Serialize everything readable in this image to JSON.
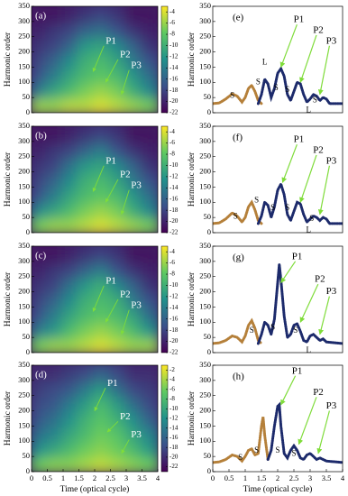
{
  "chart_data": [
    {
      "type": "heatmap",
      "label": "(a)",
      "ylabel": "Harmonic order",
      "xlim": [
        0,
        4
      ],
      "ylim": [
        0,
        350
      ],
      "yticks": [
        0,
        50,
        100,
        150,
        200,
        250,
        300,
        350
      ],
      "x": [
        0.25,
        0.75,
        1.25,
        1.75,
        2.25,
        2.75,
        3.25,
        3.75
      ],
      "y": [
        25,
        75,
        125,
        175,
        225,
        275,
        325
      ],
      "z": [
        [
          -6,
          -6,
          -5,
          -5,
          -4,
          -5,
          -6,
          -7
        ],
        [
          -14,
          -11,
          -9,
          -7,
          -6,
          -7,
          -10,
          -13
        ],
        [
          -17,
          -14,
          -11,
          -9,
          -8,
          -9,
          -12,
          -15
        ],
        [
          -18,
          -16,
          -13,
          -10,
          -9,
          -11,
          -14,
          -17
        ],
        [
          -19,
          -18,
          -16,
          -12,
          -11,
          -13,
          -16,
          -19
        ],
        [
          -20,
          -19,
          -18,
          -16,
          -15,
          -17,
          -19,
          -20
        ],
        [
          -21,
          -21,
          -20,
          -19,
          -18,
          -19,
          -21,
          -21
        ]
      ],
      "zlim": [
        -22,
        -3
      ],
      "zticks": [
        -4,
        -6,
        -8,
        -10,
        -12,
        -14,
        -16,
        -18,
        -20,
        -22
      ],
      "annotations": [
        "P1",
        "P2",
        "P3"
      ]
    },
    {
      "type": "heatmap",
      "label": "(b)",
      "ylabel": "Harmonic order",
      "xlim": [
        0,
        4
      ],
      "ylim": [
        0,
        350
      ],
      "yticks": [
        0,
        50,
        100,
        150,
        200,
        250,
        300,
        350
      ],
      "x": [
        0.25,
        0.75,
        1.25,
        1.75,
        2.25,
        2.75,
        3.25,
        3.75
      ],
      "y": [
        25,
        75,
        125,
        175,
        225,
        275,
        325
      ],
      "z": [
        [
          -7,
          -6,
          -6,
          -5,
          -4,
          -5,
          -6,
          -7
        ],
        [
          -13,
          -11,
          -9,
          -7,
          -6,
          -7,
          -10,
          -13
        ],
        [
          -17,
          -14,
          -11,
          -9,
          -8,
          -9,
          -12,
          -15
        ],
        [
          -18,
          -16,
          -13,
          -10,
          -9,
          -11,
          -14,
          -17
        ],
        [
          -19,
          -18,
          -15,
          -12,
          -11,
          -13,
          -16,
          -19
        ],
        [
          -20,
          -19,
          -18,
          -16,
          -14,
          -17,
          -19,
          -20
        ],
        [
          -21,
          -21,
          -20,
          -19,
          -18,
          -19,
          -21,
          -21
        ]
      ],
      "zlim": [
        -22,
        -3
      ],
      "zticks": [
        -4,
        -6,
        -8,
        -10,
        -12,
        -14,
        -16,
        -18,
        -20,
        -22
      ],
      "annotations": [
        "P1",
        "P2",
        "P3"
      ]
    },
    {
      "type": "heatmap",
      "label": "(c)",
      "ylabel": "Harmonic order",
      "xlim": [
        0,
        4
      ],
      "ylim": [
        0,
        350
      ],
      "yticks": [
        0,
        50,
        100,
        150,
        200,
        250,
        300,
        350
      ],
      "x": [
        0.25,
        0.75,
        1.25,
        1.75,
        2.25,
        2.75,
        3.25,
        3.75
      ],
      "y": [
        25,
        75,
        125,
        175,
        225,
        275,
        325
      ],
      "z": [
        [
          -7,
          -6,
          -6,
          -5,
          -4,
          -5,
          -6,
          -6
        ],
        [
          -14,
          -12,
          -9,
          -7,
          -6,
          -7,
          -9,
          -12
        ],
        [
          -17,
          -14,
          -11,
          -9,
          -8,
          -9,
          -11,
          -15
        ],
        [
          -18,
          -16,
          -13,
          -10,
          -9,
          -10,
          -14,
          -17
        ],
        [
          -19,
          -18,
          -15,
          -12,
          -10,
          -13,
          -16,
          -19
        ],
        [
          -20,
          -19,
          -18,
          -16,
          -14,
          -17,
          -19,
          -20
        ],
        [
          -21,
          -21,
          -20,
          -19,
          -18,
          -19,
          -21,
          -21
        ]
      ],
      "zlim": [
        -22,
        -3
      ],
      "zticks": [
        -4,
        -6,
        -8,
        -10,
        -12,
        -14,
        -16,
        -18,
        -20,
        -22
      ],
      "annotations": [
        "P1",
        "P2",
        "P3"
      ]
    },
    {
      "type": "heatmap",
      "label": "(d)",
      "ylabel": "Harmonic order",
      "xlabel": "Time (optical cycle)",
      "xlim": [
        0,
        4
      ],
      "ylim": [
        0,
        350
      ],
      "xticks": [
        0,
        0.5,
        1,
        1.5,
        2,
        2.5,
        3,
        3.5,
        4
      ],
      "yticks": [
        0,
        50,
        100,
        150,
        200,
        250,
        300,
        350
      ],
      "x": [
        0.25,
        0.75,
        1.25,
        1.75,
        2.25,
        2.75,
        3.25,
        3.75
      ],
      "y": [
        25,
        75,
        125,
        175,
        225,
        275,
        325
      ],
      "z": [
        [
          -6,
          -5,
          -5,
          -4,
          -3,
          -4,
          -5,
          -6
        ],
        [
          -12,
          -10,
          -8,
          -6,
          -5,
          -6,
          -8,
          -11
        ],
        [
          -15,
          -13,
          -10,
          -8,
          -6,
          -7,
          -10,
          -13
        ],
        [
          -17,
          -15,
          -12,
          -9,
          -7,
          -9,
          -12,
          -16
        ],
        [
          -18,
          -17,
          -14,
          -11,
          -8,
          -11,
          -15,
          -18
        ],
        [
          -19,
          -18,
          -17,
          -14,
          -11,
          -15,
          -18,
          -19
        ],
        [
          -20,
          -20,
          -19,
          -18,
          -16,
          -18,
          -20,
          -20
        ]
      ],
      "zlim": [
        -23,
        -1
      ],
      "zticks": [
        -2,
        -4,
        -6,
        -8,
        -10,
        -12,
        -14,
        -16,
        -18,
        -20,
        -22
      ],
      "annotations": [
        "P1",
        "P2",
        "P3"
      ]
    },
    {
      "type": "line",
      "label": "(e)",
      "ylabel": "Harmonic order",
      "xlim": [
        0,
        4
      ],
      "ylim": [
        0,
        350
      ],
      "yticks": [
        0,
        50,
        100,
        150,
        200,
        250,
        300,
        350
      ],
      "series": [
        {
          "color": "#b5803a",
          "x": [
            0,
            0.2,
            0.4,
            0.6,
            0.75,
            0.9,
            1.0,
            1.1,
            1.2,
            1.3,
            1.4,
            1.5
          ],
          "values": [
            30,
            32,
            45,
            62,
            55,
            35,
            50,
            80,
            90,
            70,
            40,
            30
          ]
        },
        {
          "color": "#1c2a6b",
          "x": [
            1.4,
            1.5,
            1.6,
            1.7,
            1.8,
            1.9,
            2.0,
            2.1,
            2.2,
            2.3,
            2.4,
            2.5,
            2.6,
            2.7,
            2.8,
            2.9,
            3.0,
            3.1,
            3.2,
            3.3,
            3.4,
            3.5,
            3.6,
            4.0
          ],
          "values": [
            30,
            60,
            110,
            95,
            50,
            80,
            130,
            145,
            120,
            60,
            40,
            70,
            100,
            95,
            60,
            35,
            45,
            60,
            55,
            40,
            50,
            45,
            30,
            30
          ]
        }
      ],
      "annotations": [
        "S",
        "S",
        "L",
        "S",
        "S",
        "S",
        "L",
        "P1",
        "P2",
        "P3"
      ]
    },
    {
      "type": "line",
      "label": "(f)",
      "ylabel": "Harmonic order",
      "xlim": [
        0,
        4
      ],
      "ylim": [
        0,
        350
      ],
      "yticks": [
        0,
        50,
        100,
        150,
        200,
        250,
        300,
        350
      ],
      "series": [
        {
          "color": "#b5803a",
          "x": [
            0,
            0.2,
            0.4,
            0.6,
            0.75,
            0.9,
            1.0,
            1.1,
            1.2,
            1.3,
            1.4,
            1.5
          ],
          "values": [
            30,
            32,
            45,
            65,
            55,
            35,
            50,
            85,
            100,
            75,
            40,
            30
          ]
        },
        {
          "color": "#1c2a6b",
          "x": [
            1.4,
            1.5,
            1.6,
            1.7,
            1.8,
            1.9,
            2.0,
            2.1,
            2.2,
            2.3,
            2.4,
            2.5,
            2.6,
            2.7,
            2.8,
            2.9,
            3.0,
            3.1,
            3.2,
            3.3,
            3.4,
            3.5,
            3.6,
            4.0
          ],
          "values": [
            30,
            55,
            100,
            90,
            50,
            85,
            140,
            160,
            125,
            60,
            40,
            70,
            100,
            95,
            60,
            35,
            45,
            55,
            50,
            40,
            50,
            45,
            30,
            30
          ]
        }
      ],
      "annotations": [
        "S",
        "S",
        "S",
        "S",
        "S",
        "L",
        "P1",
        "P2",
        "P3"
      ]
    },
    {
      "type": "line",
      "label": "(g)",
      "ylabel": "Harmonic order",
      "xlim": [
        0,
        4
      ],
      "ylim": [
        0,
        350
      ],
      "yticks": [
        0,
        50,
        100,
        150,
        200,
        250,
        300,
        350
      ],
      "series": [
        {
          "color": "#b5803a",
          "x": [
            0,
            0.2,
            0.4,
            0.6,
            0.75,
            0.9,
            1.0,
            1.1,
            1.2,
            1.3,
            1.4,
            1.5
          ],
          "values": [
            30,
            32,
            40,
            55,
            50,
            35,
            55,
            90,
            105,
            80,
            40,
            30
          ]
        },
        {
          "color": "#1c2a6b",
          "x": [
            1.4,
            1.5,
            1.6,
            1.7,
            1.8,
            1.9,
            2.0,
            2.05,
            2.1,
            2.2,
            2.3,
            2.4,
            2.5,
            2.6,
            2.7,
            2.8,
            2.9,
            3.0,
            3.1,
            3.2,
            3.3,
            3.4,
            3.5,
            4.0
          ],
          "values": [
            30,
            60,
            100,
            90,
            60,
            110,
            230,
            290,
            240,
            120,
            50,
            60,
            90,
            95,
            70,
            40,
            35,
            55,
            60,
            50,
            40,
            45,
            35,
            30
          ]
        }
      ],
      "annotations": [
        "S",
        "S",
        "S",
        "L",
        "P1",
        "P2",
        "P3"
      ]
    },
    {
      "type": "line",
      "label": "(h)",
      "ylabel": "Harmonic order",
      "xlabel": "Time (optical cycle)",
      "xlim": [
        0,
        4
      ],
      "ylim": [
        0,
        350
      ],
      "xticks": [
        0,
        0.5,
        1,
        1.5,
        2,
        2.5,
        3,
        3.5,
        4
      ],
      "yticks": [
        0,
        50,
        100,
        150,
        200,
        250,
        300,
        350
      ],
      "series": [
        {
          "color": "#b5803a",
          "x": [
            0,
            0.2,
            0.4,
            0.6,
            0.75,
            0.9,
            1.0,
            1.1,
            1.2,
            1.3,
            1.4,
            1.5,
            1.55,
            1.6,
            1.7
          ],
          "values": [
            30,
            32,
            40,
            55,
            50,
            35,
            50,
            70,
            75,
            55,
            60,
            150,
            180,
            120,
            40
          ]
        },
        {
          "color": "#1c2a6b",
          "x": [
            1.7,
            1.8,
            1.9,
            2.0,
            2.05,
            2.1,
            2.2,
            2.3,
            2.4,
            2.5,
            2.6,
            2.7,
            2.8,
            2.9,
            3.0,
            3.1,
            3.2,
            3.3,
            3.4,
            3.5,
            4.0
          ],
          "values": [
            40,
            70,
            150,
            215,
            220,
            150,
            60,
            45,
            70,
            85,
            70,
            45,
            40,
            55,
            60,
            50,
            40,
            45,
            40,
            35,
            30
          ]
        }
      ],
      "annotations": [
        "S",
        "S",
        "S",
        "S",
        "P1",
        "P2",
        "P3"
      ]
    }
  ]
}
